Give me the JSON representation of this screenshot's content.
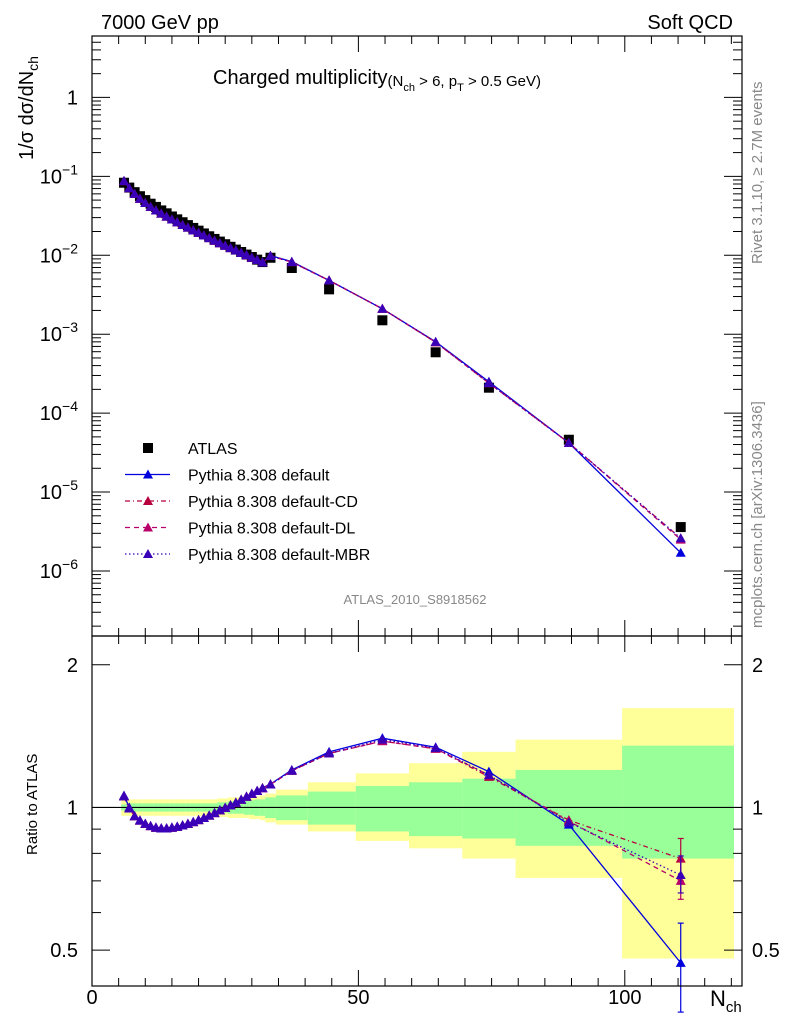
{
  "header": {
    "left": "7000 GeV pp",
    "right": "Soft QCD"
  },
  "title": {
    "main": "Charged multiplicity",
    "cut_open": "(N",
    "cut_sub1": "ch",
    "cut_mid": " > 6, p",
    "cut_sub2": "T",
    "cut_end": " > 0.5 GeV)"
  },
  "side_labels": {
    "rivet": "Rivet 3.1.10, ≥ 2.7M events",
    "mcplots": "mcplots.cern.ch [arXiv:1306.3436]"
  },
  "analysis_id": "ATLAS_2010_S8918562",
  "axes": {
    "top_ylabel_main": "1/σ dσ/dN",
    "top_ylabel_sub": "ch",
    "bottom_ylabel": "Ratio to ATLAS",
    "xlabel_main": "N",
    "xlabel_sub": "ch"
  },
  "colors": {
    "atlas": "#000000",
    "default": "#0000dd",
    "cd": "#b8003f",
    "dl": "#b8006a",
    "mbr": "#3a00b8",
    "band_stat": "#99ff99",
    "band_tot": "#ffff99"
  },
  "chart_data": [
    {
      "type": "scatter",
      "panel": "main",
      "title": "Charged multiplicity (Nch > 6, pT > 0.5 GeV)",
      "xlabel": "Nch",
      "ylabel": "1/σ dσ/dNch",
      "xlim": [
        0,
        122
      ],
      "ylim": [
        1.5e-07,
        6
      ],
      "yscale": "log",
      "legend_position": "bottom-left",
      "x_ticks": [
        0,
        50,
        100
      ],
      "y_ticks": [
        {
          "v": 1e-06,
          "b": "10",
          "e": "−6"
        },
        {
          "v": 1e-05,
          "b": "10",
          "e": "−5"
        },
        {
          "v": 0.0001,
          "b": "10",
          "e": "−4"
        },
        {
          "v": 0.001,
          "b": "10",
          "e": "−3"
        },
        {
          "v": 0.01,
          "b": "10",
          "e": "−2"
        },
        {
          "v": 0.1,
          "b": "10",
          "e": "−1"
        },
        {
          "v": 1,
          "b": "1",
          "e": ""
        }
      ],
      "x": [
        6,
        7,
        8,
        9,
        10,
        11,
        12,
        13,
        14,
        15,
        16,
        17,
        18,
        19,
        20,
        21,
        22,
        23,
        24,
        25,
        26,
        27,
        28,
        29,
        30,
        31,
        32,
        33.5,
        37.5,
        44.5,
        54.5,
        64.5,
        74.5,
        89.5,
        110.5
      ],
      "series": [
        {
          "name": "ATLAS",
          "key": "atlas",
          "marker": "square",
          "values": [
            0.083,
            0.072,
            0.063,
            0.056,
            0.05,
            0.045,
            0.041,
            0.037,
            0.034,
            0.031,
            0.0285,
            0.0262,
            0.0241,
            0.0222,
            0.0205,
            0.0189,
            0.0174,
            0.0161,
            0.0149,
            0.0138,
            0.0128,
            0.0118,
            0.011,
            0.0102,
            0.0095,
            0.0088,
            0.0082,
            0.0093,
            0.0069,
            0.0037,
            0.0015,
            0.00059,
            0.00021,
            4.6e-05,
            3.6e-06
          ]
        },
        {
          "name": "Pythia 8.308 default",
          "key": "default",
          "marker": "triangle",
          "dash": "",
          "values": [
            0.088,
            0.071,
            0.06,
            0.052,
            0.046,
            0.041,
            0.0372,
            0.0338,
            0.031,
            0.0285,
            0.0263,
            0.0243,
            0.0225,
            0.0208,
            0.0193,
            0.0179,
            0.0166,
            0.0154,
            0.0143,
            0.0133,
            0.0124,
            0.0116,
            0.0108,
            0.0101,
            0.0094,
            0.0088,
            0.0082,
            0.0099,
            0.0083,
            0.0048,
            0.0021,
            0.0008,
            0.00025,
            4.2e-05,
            1.7e-06
          ]
        },
        {
          "name": "Pythia 8.308 default-CD",
          "key": "cd",
          "marker": "triangle",
          "dash": "5,3,1,3",
          "values": [
            0.087,
            0.071,
            0.06,
            0.052,
            0.046,
            0.041,
            0.0371,
            0.0337,
            0.0309,
            0.0284,
            0.0262,
            0.0242,
            0.0224,
            0.0207,
            0.0192,
            0.0178,
            0.0165,
            0.0153,
            0.0142,
            0.0132,
            0.0123,
            0.0115,
            0.0107,
            0.01,
            0.0093,
            0.0087,
            0.0081,
            0.0098,
            0.0082,
            0.0048,
            0.0021,
            0.00079,
            0.00024,
            4.2e-05,
            2.6e-06
          ]
        },
        {
          "name": "Pythia 8.308 default-DL",
          "key": "dl",
          "marker": "triangle",
          "dash": "5,4",
          "values": [
            0.087,
            0.071,
            0.06,
            0.052,
            0.046,
            0.041,
            0.0371,
            0.0337,
            0.0309,
            0.0284,
            0.0262,
            0.0242,
            0.0224,
            0.0207,
            0.0192,
            0.0178,
            0.0165,
            0.0153,
            0.0142,
            0.0132,
            0.0123,
            0.0115,
            0.0107,
            0.01,
            0.0093,
            0.0087,
            0.0081,
            0.0098,
            0.0082,
            0.0048,
            0.0021,
            0.00079,
            0.00024,
            4.2e-05,
            2.5e-06
          ]
        },
        {
          "name": "Pythia 8.308 default-MBR",
          "key": "mbr",
          "marker": "triangle",
          "dash": "1.5,2.5",
          "values": [
            0.087,
            0.071,
            0.06,
            0.052,
            0.046,
            0.041,
            0.0371,
            0.0337,
            0.0309,
            0.0284,
            0.0262,
            0.0242,
            0.0224,
            0.0207,
            0.0192,
            0.0178,
            0.0165,
            0.0153,
            0.0142,
            0.0132,
            0.0123,
            0.0115,
            0.0107,
            0.01,
            0.0093,
            0.0087,
            0.0081,
            0.0098,
            0.0082,
            0.0048,
            0.0021,
            0.0008,
            0.00024,
            4.2e-05,
            2.6e-06
          ]
        }
      ]
    },
    {
      "type": "line",
      "panel": "ratio",
      "ylabel": "Ratio to ATLAS",
      "xlabel": "Nch",
      "xlim": [
        0,
        122
      ],
      "ylim": [
        0.42,
        2.3
      ],
      "yscale": "log",
      "y_ticks": [
        0.5,
        1,
        2
      ],
      "x_ticks": [
        0,
        50,
        100
      ],
      "bands": {
        "edges": [
          5.5,
          6.5,
          7.5,
          8.5,
          9.5,
          10.5,
          11.5,
          12.5,
          13.5,
          14.5,
          15.5,
          16.5,
          17.5,
          18.5,
          19.5,
          20.5,
          21.5,
          22.5,
          23.5,
          24.5,
          25.5,
          26.5,
          27.5,
          28.5,
          29.5,
          30.5,
          31.5,
          32.5,
          34.5,
          40.5,
          49.5,
          59.5,
          69.5,
          79.5,
          99.5,
          120.5
        ],
        "stat_lo": [
          0.985,
          0.98,
          0.98,
          0.98,
          0.98,
          0.98,
          0.98,
          0.98,
          0.98,
          0.98,
          0.98,
          0.98,
          0.98,
          0.98,
          0.98,
          0.98,
          0.98,
          0.98,
          0.975,
          0.975,
          0.97,
          0.97,
          0.97,
          0.965,
          0.965,
          0.96,
          0.96,
          0.95,
          0.94,
          0.92,
          0.89,
          0.87,
          0.86,
          0.83,
          0.78
        ],
        "stat_hi": [
          1.015,
          1.02,
          1.02,
          1.02,
          1.02,
          1.02,
          1.02,
          1.02,
          1.02,
          1.02,
          1.02,
          1.02,
          1.02,
          1.02,
          1.02,
          1.02,
          1.02,
          1.02,
          1.025,
          1.025,
          1.03,
          1.03,
          1.03,
          1.035,
          1.035,
          1.04,
          1.04,
          1.05,
          1.06,
          1.08,
          1.11,
          1.13,
          1.15,
          1.2,
          1.35
        ],
        "tot_lo": [
          0.96,
          0.96,
          0.96,
          0.96,
          0.96,
          0.96,
          0.96,
          0.96,
          0.96,
          0.96,
          0.96,
          0.96,
          0.96,
          0.96,
          0.96,
          0.96,
          0.96,
          0.96,
          0.955,
          0.955,
          0.95,
          0.95,
          0.95,
          0.95,
          0.945,
          0.945,
          0.94,
          0.93,
          0.92,
          0.89,
          0.85,
          0.82,
          0.78,
          0.71,
          0.48
        ],
        "tot_hi": [
          1.04,
          1.04,
          1.04,
          1.04,
          1.04,
          1.04,
          1.04,
          1.04,
          1.04,
          1.04,
          1.04,
          1.04,
          1.04,
          1.04,
          1.04,
          1.04,
          1.04,
          1.04,
          1.045,
          1.045,
          1.05,
          1.05,
          1.05,
          1.05,
          1.055,
          1.055,
          1.06,
          1.07,
          1.09,
          1.13,
          1.18,
          1.24,
          1.31,
          1.39,
          1.62
        ]
      },
      "x": [
        6,
        7,
        8,
        9,
        10,
        11,
        12,
        13,
        14,
        15,
        16,
        17,
        18,
        19,
        20,
        21,
        22,
        23,
        24,
        25,
        26,
        27,
        28,
        29,
        30,
        31,
        32,
        33.5,
        37.5,
        44.5,
        54.5,
        64.5,
        74.5,
        89.5,
        110.5
      ],
      "series": [
        {
          "name": "Pythia 8.308 default",
          "key": "default",
          "dash": "",
          "values": [
            1.06,
            1.0,
            0.96,
            0.94,
            0.925,
            0.915,
            0.908,
            0.905,
            0.905,
            0.908,
            0.912,
            0.918,
            0.925,
            0.933,
            0.942,
            0.952,
            0.963,
            0.975,
            0.988,
            1.0,
            1.012,
            1.025,
            1.04,
            1.055,
            1.07,
            1.085,
            1.1,
            1.12,
            1.2,
            1.31,
            1.4,
            1.34,
            1.19,
            0.92,
            0.47
          ],
          "err_last": [
            0.37,
            0.57
          ]
        },
        {
          "name": "Pythia 8.308 default-CD",
          "key": "cd",
          "dash": "5,3,1,3",
          "values": [
            1.055,
            0.995,
            0.958,
            0.938,
            0.923,
            0.913,
            0.906,
            0.903,
            0.903,
            0.906,
            0.91,
            0.916,
            0.923,
            0.931,
            0.94,
            0.95,
            0.961,
            0.973,
            0.986,
            0.998,
            1.01,
            1.023,
            1.038,
            1.053,
            1.068,
            1.083,
            1.098,
            1.118,
            1.195,
            1.3,
            1.38,
            1.33,
            1.16,
            0.94,
            0.78
          ],
          "err_last": [
            0.7,
            0.86
          ]
        },
        {
          "name": "Pythia 8.308 default-DL",
          "key": "dl",
          "dash": "5,4",
          "values": [
            1.055,
            0.995,
            0.958,
            0.938,
            0.923,
            0.913,
            0.906,
            0.903,
            0.903,
            0.906,
            0.91,
            0.916,
            0.923,
            0.931,
            0.94,
            0.95,
            0.961,
            0.973,
            0.986,
            0.998,
            1.01,
            1.023,
            1.038,
            1.053,
            1.068,
            1.083,
            1.098,
            1.118,
            1.195,
            1.3,
            1.38,
            1.33,
            1.17,
            0.935,
            0.7
          ],
          "err_last": [
            0.64,
            0.77
          ]
        },
        {
          "name": "Pythia 8.308 default-MBR",
          "key": "mbr",
          "dash": "1.5,2.5",
          "values": [
            1.055,
            0.995,
            0.958,
            0.938,
            0.923,
            0.913,
            0.906,
            0.903,
            0.903,
            0.906,
            0.91,
            0.916,
            0.923,
            0.931,
            0.94,
            0.95,
            0.961,
            0.973,
            0.986,
            0.998,
            1.01,
            1.023,
            1.038,
            1.053,
            1.068,
            1.083,
            1.098,
            1.118,
            1.195,
            1.3,
            1.39,
            1.335,
            1.17,
            0.93,
            0.72
          ],
          "err_last": [
            0.66,
            0.79
          ]
        }
      ]
    }
  ]
}
